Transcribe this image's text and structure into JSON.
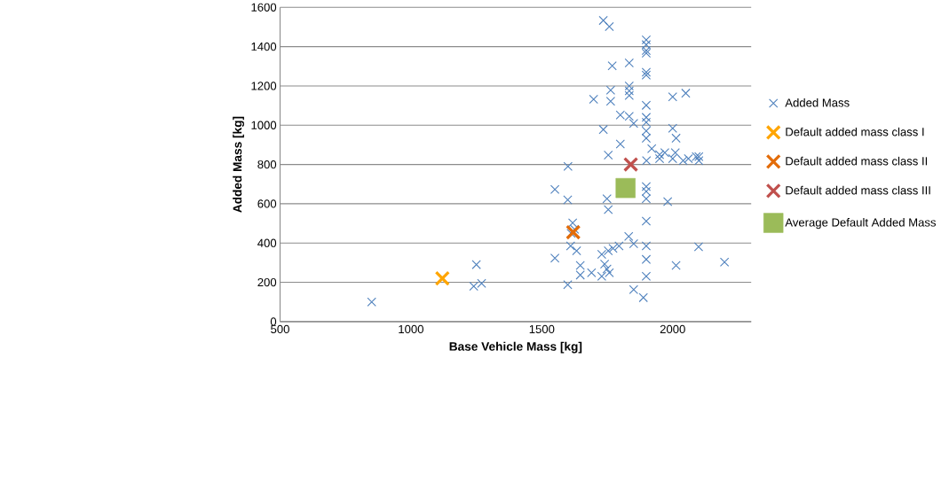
{
  "chart_data": {
    "type": "scatter",
    "xlabel": "Base Vehicle Mass [kg]",
    "ylabel": "Added Mass [kg]",
    "xlim": [
      500,
      2300
    ],
    "xticks": [
      500,
      1000,
      1500,
      2000
    ],
    "ylim": [
      0,
      1600
    ],
    "yticks": [
      0,
      200,
      400,
      600,
      800,
      1000,
      1200,
      1400,
      1600
    ],
    "grid": "y",
    "legend": "right",
    "marker": "cross",
    "series": [
      {
        "name": "Added Mass",
        "color": "#4f81bd",
        "x": [
          850,
          1250,
          1240,
          1270,
          1735,
          1758,
          1899,
          1899,
          1899,
          1899,
          1769,
          1834,
          1899,
          1899,
          1763,
          1834,
          1834,
          1834,
          1698,
          1763,
          1899,
          2000,
          2050,
          1800,
          1834,
          1899,
          1899,
          1851,
          2000,
          2013,
          1735,
          1800,
          1754,
          1899,
          1899,
          1900,
          1950,
          1970,
          2000,
          2010,
          2040,
          2060,
          2090,
          2100,
          2100,
          1920,
          1950,
          1600,
          1550,
          1599,
          1749,
          1754,
          1899,
          1899,
          1899,
          1981,
          1899,
          1618,
          1612,
          1625,
          1832,
          1795,
          1851,
          1899,
          1899,
          1610,
          1633,
          1550,
          1647,
          1647,
          1690,
          1729,
          1754,
          1772,
          1740,
          1749,
          1758,
          1729,
          1599,
          1899,
          1851,
          1888,
          2013,
          2099,
          2198
        ],
        "values": [
          100,
          290,
          180,
          195,
          1533,
          1502,
          1434,
          1410,
          1380,
          1367,
          1302,
          1317,
          1270,
          1255,
          1178,
          1200,
          1175,
          1151,
          1132,
          1122,
          1101,
          1144,
          1163,
          1052,
          1045,
          1040,
          1015,
          1009,
          984,
          934,
          978,
          904,
          848,
          971,
          934,
          820,
          850,
          860,
          830,
          860,
          820,
          830,
          840,
          820,
          840,
          880,
          830,
          790,
          673,
          620,
          626,
          570,
          688,
          663,
          626,
          611,
          512,
          503,
          450,
          470,
          434,
          385,
          397,
          385,
          317,
          385,
          360,
          323,
          286,
          237,
          249,
          342,
          360,
          373,
          293,
          268,
          249,
          231,
          188,
          231,
          163,
          122,
          286,
          381,
          303
        ]
      },
      {
        "name": "Default added mass class I",
        "color": "#ffa500",
        "x": [
          1120
        ],
        "values": [
          220
        ]
      },
      {
        "name": "Default added mass class II",
        "color": "#e36c09",
        "x": [
          1620
        ],
        "values": [
          455
        ]
      },
      {
        "name": "Default added mass class III",
        "color": "#c0504d",
        "x": [
          1840
        ],
        "values": [
          800
        ]
      },
      {
        "name": "Average Default Added Mass",
        "color": "#9bbb59",
        "marker": "square",
        "x": [
          1820
        ],
        "values": [
          680
        ]
      }
    ]
  }
}
